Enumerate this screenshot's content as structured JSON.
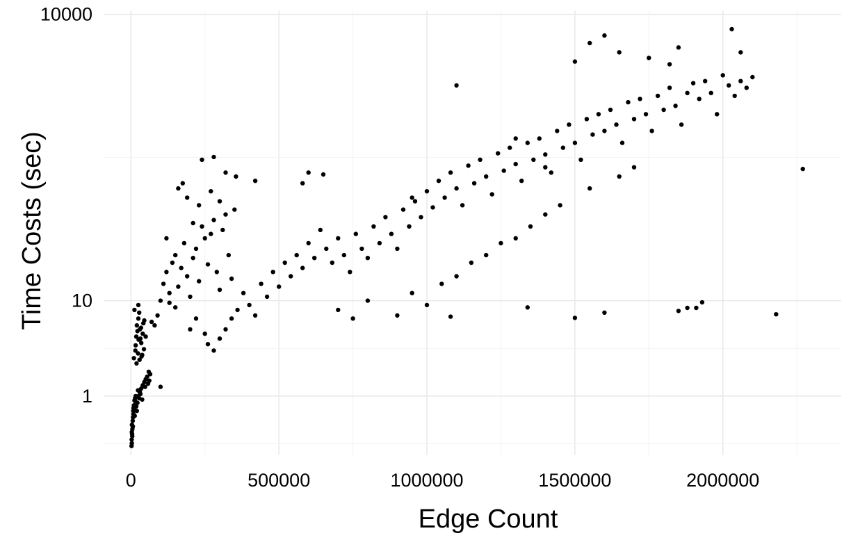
{
  "chart_data": {
    "type": "scatter",
    "title": "",
    "xlabel": "Edge Count",
    "ylabel": "Time Costs (sec)",
    "x_ticks": [
      0,
      500000,
      1000000,
      1500000,
      2000000
    ],
    "x_tick_labels": [
      "0",
      "500000",
      "1000000",
      "1500000",
      "2000000"
    ],
    "y_scale": "log10",
    "y_ticks": [
      1,
      10,
      10000
    ],
    "y_tick_labels": [
      "1",
      "10",
      "10000"
    ],
    "xlim": [
      -90000,
      2400000
    ],
    "ylim": [
      0.24,
      11000
    ],
    "grid": true,
    "legend": "none",
    "point_color": "#000000",
    "series": [
      {
        "points": [
          [
            2000,
            0.3
          ],
          [
            3000,
            0.32
          ],
          [
            2500,
            0.35
          ],
          [
            4000,
            0.4
          ],
          [
            5000,
            0.45
          ],
          [
            3500,
            0.5
          ],
          [
            6000,
            0.55
          ],
          [
            7000,
            0.6
          ],
          [
            8000,
            0.7
          ],
          [
            9000,
            0.75
          ],
          [
            10000,
            0.8
          ],
          [
            12000,
            0.9
          ],
          [
            14000,
            0.95
          ],
          [
            16000,
            1.0
          ],
          [
            20000,
            0.7
          ],
          [
            22000,
            0.85
          ],
          [
            25000,
            1.0
          ],
          [
            28000,
            0.95
          ],
          [
            30000,
            1.1
          ],
          [
            35000,
            1.2
          ],
          [
            40000,
            1.3
          ],
          [
            45000,
            1.4
          ],
          [
            50000,
            1.5
          ],
          [
            55000,
            1.6
          ],
          [
            60000,
            1.8
          ],
          [
            65000,
            1.7
          ],
          [
            3000,
            0.42
          ],
          [
            4500,
            0.38
          ],
          [
            6500,
            0.48
          ],
          [
            8500,
            0.65
          ],
          [
            11000,
            0.72
          ],
          [
            13000,
            0.62
          ],
          [
            15000,
            0.88
          ],
          [
            18000,
            0.78
          ],
          [
            24000,
            1.15
          ],
          [
            32000,
            1.05
          ],
          [
            38000,
            0.92
          ],
          [
            48000,
            1.25
          ],
          [
            58000,
            1.35
          ],
          [
            62000,
            1.45
          ],
          [
            100000,
            1.25
          ],
          [
            10000,
            2.5
          ],
          [
            15000,
            3.0
          ],
          [
            18000,
            4.2
          ],
          [
            20000,
            5.5
          ],
          [
            22000,
            4.8
          ],
          [
            25000,
            6.5
          ],
          [
            28000,
            7.5
          ],
          [
            30000,
            5.0
          ],
          [
            32000,
            4.0
          ],
          [
            35000,
            3.6
          ],
          [
            40000,
            4.5
          ],
          [
            42000,
            5.8
          ],
          [
            45000,
            6.2
          ],
          [
            50000,
            4.2
          ],
          [
            16000,
            3.4
          ],
          [
            24000,
            2.8
          ],
          [
            26000,
            3.9
          ],
          [
            34000,
            5.2
          ],
          [
            38000,
            2.7
          ],
          [
            44000,
            3.1
          ],
          [
            19000,
            2.2
          ],
          [
            29000,
            2.4
          ],
          [
            36000,
            2.6
          ],
          [
            12000,
            8.0
          ],
          [
            25000,
            9.0
          ],
          [
            70000,
            6.0
          ],
          [
            80000,
            5.5
          ],
          [
            90000,
            7.0
          ],
          [
            100000,
            10.0
          ],
          [
            110000,
            15.0
          ],
          [
            120000,
            20.0
          ],
          [
            130000,
            12.0
          ],
          [
            140000,
            25.0
          ],
          [
            150000,
            30.0
          ],
          [
            160000,
            14.0
          ],
          [
            170000,
            22.0
          ],
          [
            180000,
            40.0
          ],
          [
            190000,
            18.0
          ],
          [
            200000,
            11.0
          ],
          [
            210000,
            28.0
          ],
          [
            220000,
            35.0
          ],
          [
            230000,
            16.0
          ],
          [
            240000,
            60.0
          ],
          [
            250000,
            45.0
          ],
          [
            260000,
            24.0
          ],
          [
            270000,
            50.0
          ],
          [
            280000,
            70.0
          ],
          [
            290000,
            20.0
          ],
          [
            300000,
            13.0
          ],
          [
            310000,
            55.0
          ],
          [
            320000,
            80.0
          ],
          [
            330000,
            30.0
          ],
          [
            340000,
            17.0
          ],
          [
            350000,
            90.0
          ],
          [
            160000,
            150.0
          ],
          [
            175000,
            170.0
          ],
          [
            240000,
            300.0
          ],
          [
            280000,
            320.0
          ],
          [
            320000,
            220.0
          ],
          [
            355000,
            200.0
          ],
          [
            200000,
            5.0
          ],
          [
            220000,
            6.5
          ],
          [
            250000,
            4.5
          ],
          [
            150000,
            8.5
          ],
          [
            130000,
            9.5
          ],
          [
            270000,
            140.0
          ],
          [
            300000,
            110.0
          ],
          [
            190000,
            120.0
          ],
          [
            230000,
            100.0
          ],
          [
            120000,
            45.0
          ],
          [
            210000,
            65.0
          ],
          [
            260000,
            3.5
          ],
          [
            280000,
            3.0
          ],
          [
            300000,
            4.0
          ],
          [
            320000,
            5.0
          ],
          [
            340000,
            6.5
          ],
          [
            360000,
            8.0
          ],
          [
            380000,
            12.0
          ],
          [
            400000,
            9.0
          ],
          [
            420000,
            7.0
          ],
          [
            440000,
            15.0
          ],
          [
            460000,
            11.0
          ],
          [
            480000,
            20.0
          ],
          [
            500000,
            14.0
          ],
          [
            520000,
            25.0
          ],
          [
            540000,
            18.0
          ],
          [
            560000,
            30.0
          ],
          [
            580000,
            22.0
          ],
          [
            600000,
            40.0
          ],
          [
            620000,
            28.0
          ],
          [
            640000,
            55.0
          ],
          [
            660000,
            35.0
          ],
          [
            680000,
            25.0
          ],
          [
            700000,
            45.0
          ],
          [
            720000,
            30.0
          ],
          [
            740000,
            20.0
          ],
          [
            760000,
            50.0
          ],
          [
            780000,
            35.0
          ],
          [
            800000,
            28.0
          ],
          [
            820000,
            60.0
          ],
          [
            840000,
            40.0
          ],
          [
            860000,
            75.0
          ],
          [
            880000,
            50.0
          ],
          [
            900000,
            35.0
          ],
          [
            920000,
            90.0
          ],
          [
            940000,
            60.0
          ],
          [
            960000,
            110.0
          ],
          [
            980000,
            75.0
          ],
          [
            1000000,
            140.0
          ],
          [
            1020000,
            95.0
          ],
          [
            1040000,
            180.0
          ],
          [
            1060000,
            120.0
          ],
          [
            1080000,
            220.0
          ],
          [
            1100000,
            150.0
          ],
          [
            1120000,
            100.0
          ],
          [
            1140000,
            260.0
          ],
          [
            1160000,
            170.0
          ],
          [
            1180000,
            300.0
          ],
          [
            1200000,
            200.0
          ],
          [
            1220000,
            130.0
          ],
          [
            1240000,
            350.0
          ],
          [
            1260000,
            230.0
          ],
          [
            1280000,
            400.0
          ],
          [
            1300000,
            270.0
          ],
          [
            1320000,
            180.0
          ],
          [
            1340000,
            450.0
          ],
          [
            1360000,
            300.0
          ],
          [
            1380000,
            500.0
          ],
          [
            1400000,
            340.0
          ],
          [
            1420000,
            220.0
          ],
          [
            1440000,
            600.0
          ],
          [
            1460000,
            400.0
          ],
          [
            1480000,
            700.0
          ],
          [
            1500000,
            450.0
          ],
          [
            1520000,
            300.0
          ],
          [
            1540000,
            800.0
          ],
          [
            1560000,
            550.0
          ],
          [
            1580000,
            900.0
          ],
          [
            1600000,
            600.0
          ],
          [
            1620000,
            1000.0
          ],
          [
            1640000,
            700.0
          ],
          [
            1660000,
            450.0
          ],
          [
            1680000,
            1200.0
          ],
          [
            1700000,
            800.0
          ],
          [
            1720000,
            1300.0
          ],
          [
            1740000,
            900.0
          ],
          [
            1760000,
            600.0
          ],
          [
            1780000,
            1400.0
          ],
          [
            1800000,
            1000.0
          ],
          [
            1820000,
            1700.0
          ],
          [
            1840000,
            1100.0
          ],
          [
            1860000,
            700.0
          ],
          [
            1880000,
            1500.0
          ],
          [
            1900000,
            1900.0
          ],
          [
            1920000,
            1300.0
          ],
          [
            1940000,
            2000.0
          ],
          [
            1960000,
            1500.0
          ],
          [
            1980000,
            900.0
          ],
          [
            2000000,
            2300.0
          ],
          [
            2020000,
            1800.0
          ],
          [
            2040000,
            1400.0
          ],
          [
            2060000,
            2000.0
          ],
          [
            2080000,
            1700.0
          ],
          [
            2100000,
            2200.0
          ],
          [
            700000,
            8.0
          ],
          [
            750000,
            6.5
          ],
          [
            800000,
            10.0
          ],
          [
            900000,
            7.0
          ],
          [
            950000,
            12.0
          ],
          [
            1000000,
            9.0
          ],
          [
            1050000,
            15.0
          ],
          [
            1080000,
            6.8
          ],
          [
            1100000,
            18.0
          ],
          [
            1150000,
            25.0
          ],
          [
            1200000,
            30.0
          ],
          [
            1250000,
            40.0
          ],
          [
            1300000,
            45.0
          ],
          [
            1340000,
            8.5
          ],
          [
            1350000,
            60.0
          ],
          [
            1400000,
            80.0
          ],
          [
            1450000,
            100.0
          ],
          [
            1500000,
            6.6
          ],
          [
            1550000,
            150.0
          ],
          [
            1600000,
            7.5
          ],
          [
            1650000,
            200.0
          ],
          [
            1700000,
            250.0
          ],
          [
            1850000,
            7.8
          ],
          [
            1880000,
            8.4
          ],
          [
            1910000,
            8.4
          ],
          [
            1930000,
            9.6
          ],
          [
            2180000,
            7.2
          ],
          [
            2270000,
            240.0
          ],
          [
            1600000,
            6000.0
          ],
          [
            1550000,
            5000.0
          ],
          [
            2030000,
            7000.0
          ],
          [
            1850000,
            4500.0
          ],
          [
            2060000,
            4000.0
          ],
          [
            1820000,
            3000.0
          ],
          [
            1100000,
            1800.0
          ],
          [
            1500000,
            3200.0
          ],
          [
            420000,
            180.0
          ],
          [
            600000,
            220.0
          ],
          [
            650000,
            210.0
          ],
          [
            950000,
            120.0
          ],
          [
            580000,
            170.0
          ],
          [
            1300000,
            500.0
          ],
          [
            1400000,
            250.0
          ],
          [
            1650000,
            4000.0
          ],
          [
            1750000,
            3500.0
          ]
        ]
      }
    ]
  }
}
